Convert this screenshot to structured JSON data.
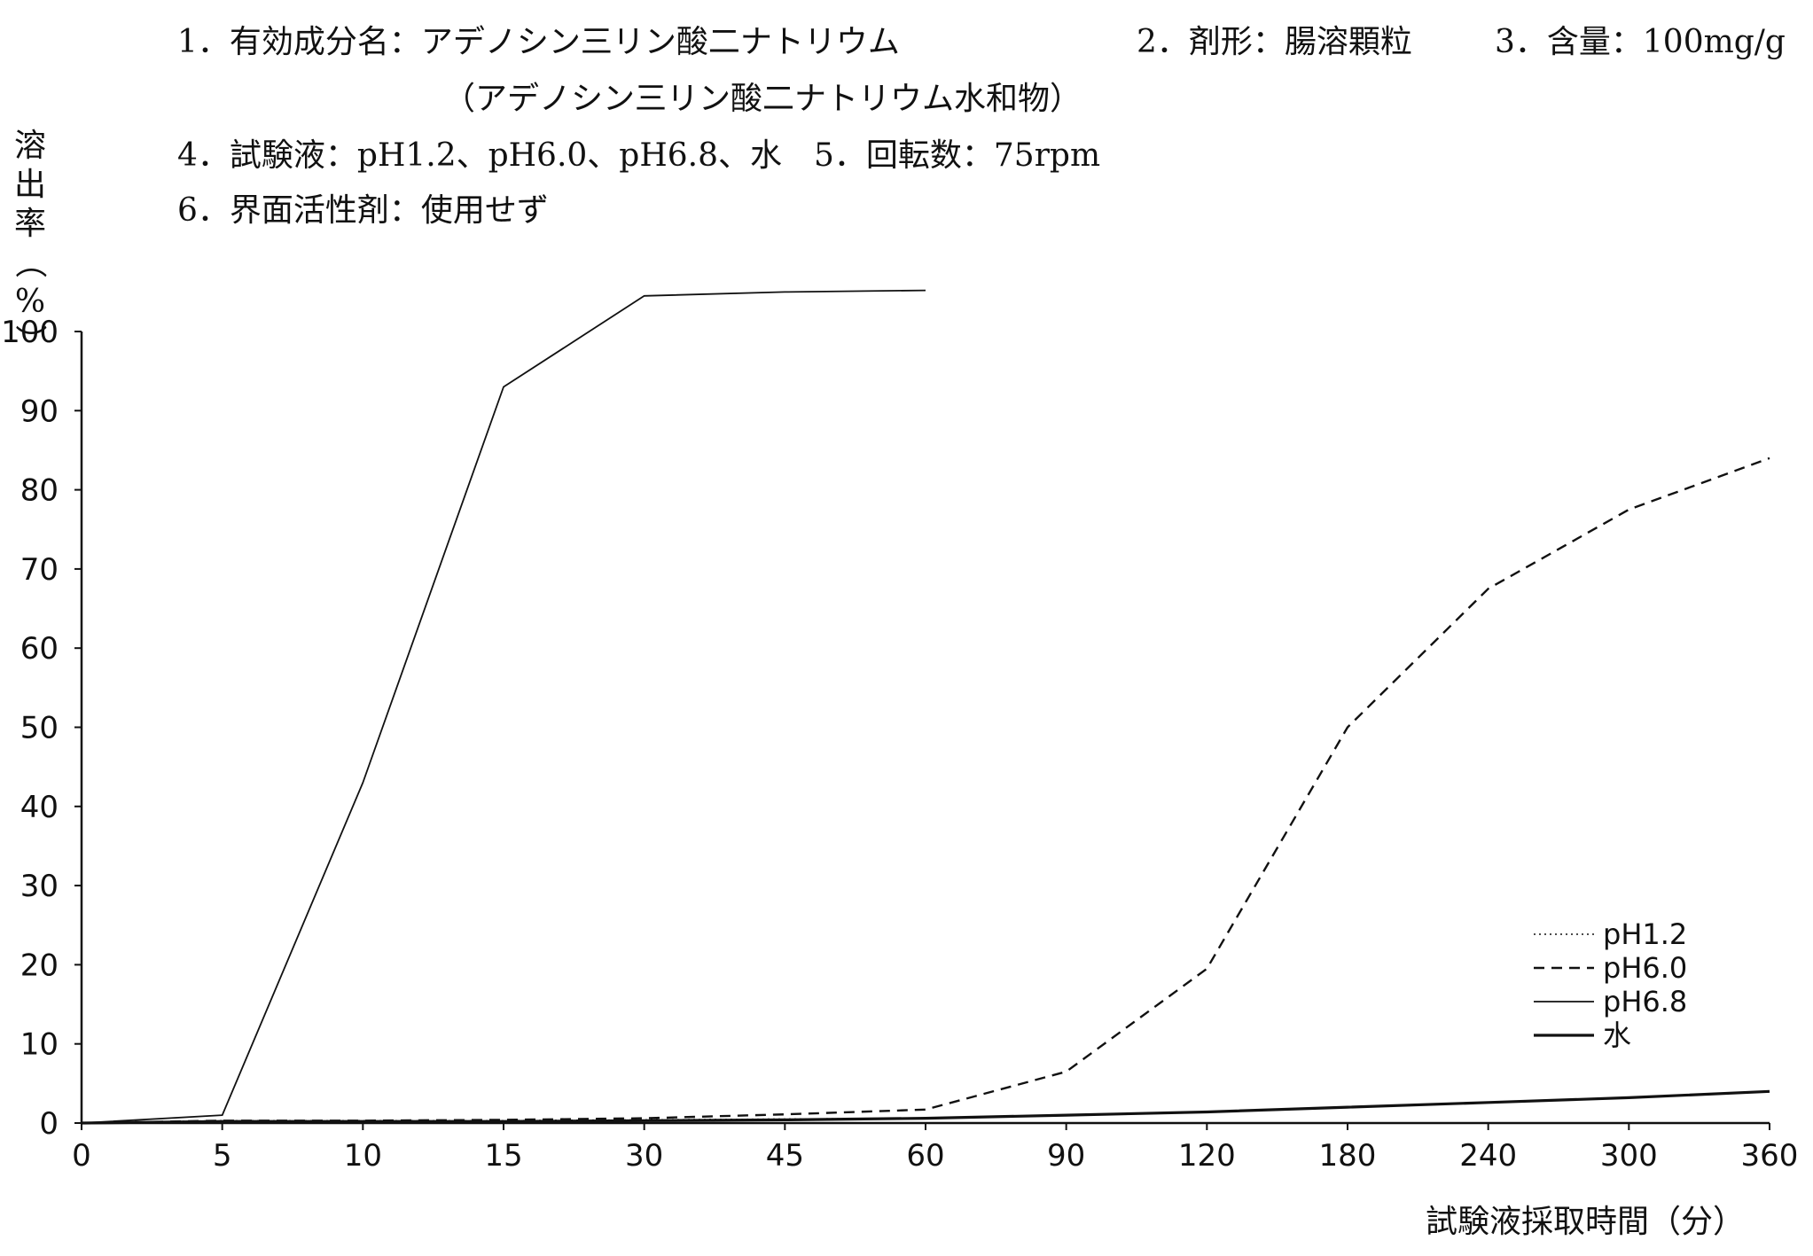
{
  "header": {
    "line1_left": "1．有効成分名：アデノシン三リン酸二ナトリウム",
    "line1_mid": "2．剤形：腸溶顆粒",
    "line1_right": "3．含量：100mg/g",
    "line2": "（アデノシン三リン酸二ナトリウム水和物）",
    "line3": "4．試験液：pH1.2、pH6.0、pH6.8、水　5．回転数：75rpm",
    "line4": "6．界面活性剤：使用せず"
  },
  "chart_data": {
    "type": "line",
    "ylabel": "溶出率（%）",
    "xlabel": "試験液採取時間（分）",
    "categories": [
      "0",
      "5",
      "10",
      "15",
      "30",
      "45",
      "60",
      "90",
      "120",
      "180",
      "240",
      "300",
      "360"
    ],
    "ylim": [
      0,
      100
    ],
    "yticks": [
      "0",
      "10",
      "20",
      "30",
      "40",
      "50",
      "60",
      "70",
      "80",
      "90",
      "100"
    ],
    "legend_position": "bottom-right",
    "series": [
      {
        "name": "pH1.2",
        "style": "dotted",
        "values": [
          0,
          0.3,
          0.3,
          0.3,
          0.4,
          0.5,
          0.6,
          null,
          null,
          null,
          null,
          null,
          null
        ]
      },
      {
        "name": "pH6.0",
        "style": "dashed",
        "values": [
          0,
          0.3,
          0.3,
          0.4,
          0.6,
          1.1,
          1.7,
          6.5,
          19.5,
          50,
          67.5,
          77.5,
          84
        ]
      },
      {
        "name": "pH6.8",
        "style": "thin",
        "values": [
          0,
          1.0,
          43,
          93,
          104.5,
          105,
          105.2,
          null,
          null,
          null,
          null,
          null,
          null
        ]
      },
      {
        "name": "水",
        "style": "thick",
        "values": [
          0,
          0.2,
          0.2,
          0.2,
          0.3,
          0.4,
          0.6,
          1.0,
          1.4,
          2.0,
          2.6,
          3.2,
          4.0
        ]
      }
    ]
  }
}
